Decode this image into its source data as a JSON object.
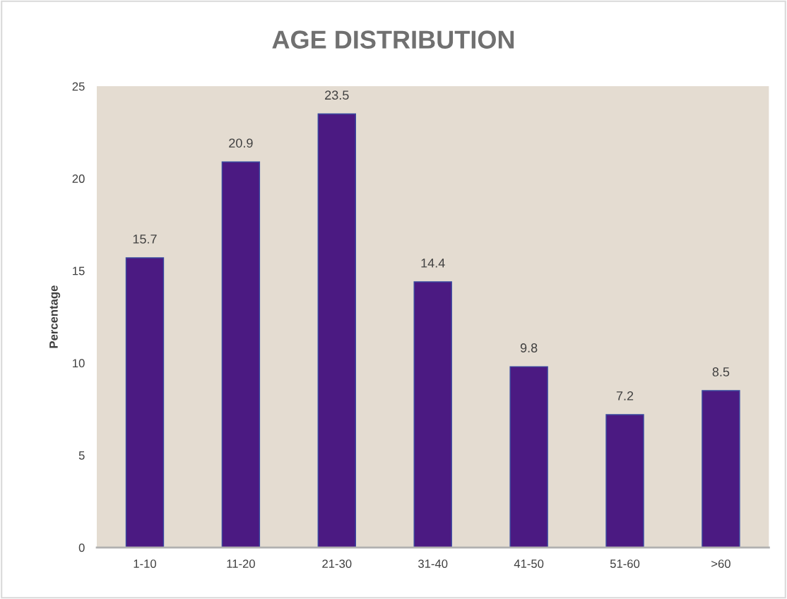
{
  "chart_data": {
    "type": "bar",
    "title": "AGE DISTRIBUTION",
    "ylabel": "Percentage",
    "categories": [
      "1-10",
      "11-20",
      "21-30",
      "31-40",
      "41-50",
      "51-60",
      ">60"
    ],
    "values": [
      15.7,
      20.9,
      23.5,
      14.4,
      9.8,
      7.2,
      8.5
    ],
    "color": "#4b1a82",
    "ylim": [
      0,
      25
    ],
    "yticks": [
      0,
      5,
      10,
      15,
      20,
      25
    ],
    "grid": false,
    "data_labels": true
  }
}
